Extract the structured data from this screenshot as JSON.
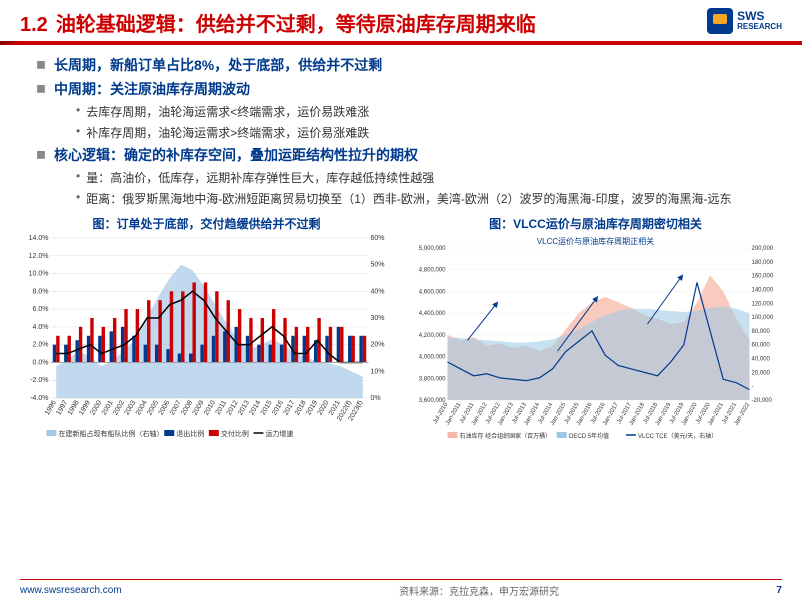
{
  "header": {
    "section_num": "1.2",
    "title": "油轮基础逻辑：供给并不过剩，等待原油库存周期来临",
    "logo_main": "SWS",
    "logo_sub": "RESEARCH"
  },
  "bullets": {
    "b1": "长周期，新船订单占比8%，处于底部，供给并不过剩",
    "b2": "中周期：关注原油库存周期波动",
    "b2a": "去库存周期，油轮海运需求<终端需求，运价易跌难涨",
    "b2b": "补库存周期，油轮海运需求>终端需求，运价易涨难跌",
    "b3": "核心逻辑：确定的补库存空间，叠加运距结构性拉升的期权",
    "b3a": "量：高油价，低库存，远期补库存弹性巨大，库存越低持续性越强",
    "b3b": "距离：俄罗斯黑海地中海-欧洲短距离贸易切换至（1）西非-欧洲，美湾-欧洲（2）波罗的海黑海-印度，波罗的海黑海-远东"
  },
  "chart1": {
    "title": "图：订单处于底部，交付趋缓供给并不过剩",
    "type": "combo_bar_line",
    "x_labels": [
      "1996",
      "1997",
      "1998",
      "1999",
      "2000",
      "2001",
      "2002",
      "2003",
      "2004",
      "2005",
      "2006",
      "2007",
      "2008",
      "2009",
      "2010",
      "2011",
      "2012",
      "2013",
      "2014",
      "2015",
      "2016",
      "2017",
      "2018",
      "2019",
      "2020",
      "2021",
      "2022(f)",
      "2023(f)"
    ],
    "y1_ticks": [
      "14.0%",
      "12.0%",
      "10.0%",
      "8.0%",
      "6.0%",
      "4.0%",
      "2.0%",
      "0.0%",
      "-2.0%",
      "-4.0%"
    ],
    "y1_min": -4,
    "y1_max": 14,
    "y2_ticks": [
      "60%",
      "50%",
      "40%",
      "30%",
      "20%",
      "10%",
      "0%"
    ],
    "y2_min": 0,
    "y2_max": 60,
    "series": {
      "orderbook_ratio": {
        "label": "在建新船占现有船队比例（右轴）",
        "color": "#a6c8e8",
        "values": [
          12,
          14,
          18,
          15,
          12,
          14,
          18,
          22,
          30,
          38,
          45,
          50,
          48,
          42,
          35,
          28,
          22,
          18,
          20,
          22,
          20,
          17,
          15,
          14,
          13,
          12,
          10,
          8
        ]
      },
      "exit_ratio": {
        "label": "退出比例",
        "color": "#003a8c",
        "values": [
          2,
          2,
          2.5,
          3,
          3,
          3.5,
          4,
          3,
          2,
          2,
          1.5,
          1,
          1,
          2,
          3,
          3.5,
          4,
          3,
          2,
          2,
          2,
          3,
          3,
          2.5,
          3,
          4,
          3,
          3
        ]
      },
      "delivery_ratio": {
        "label": "交付比例",
        "color": "#c00",
        "values": [
          3,
          3,
          4,
          5,
          4,
          5,
          6,
          6,
          7,
          7,
          8,
          8,
          9,
          9,
          8,
          7,
          6,
          5,
          5,
          6,
          5,
          4,
          4,
          5,
          4,
          4,
          3,
          3
        ]
      },
      "capacity_growth": {
        "label": "运力增速",
        "color": "#000",
        "values": [
          1,
          1,
          1.5,
          2,
          1,
          1.5,
          2,
          3,
          5,
          5,
          6.5,
          7,
          8,
          7,
          5,
          3.5,
          2,
          2,
          3,
          4,
          3,
          1,
          1,
          2.5,
          1,
          0,
          0,
          0
        ]
      }
    },
    "tick_fontsize": 7,
    "legend_fontsize": 7,
    "bg": "#ffffff"
  },
  "chart2": {
    "title": "图：VLCC运价与原油库存周期密切相关",
    "subtitle": "VLCC运价与原油库存周期正相关",
    "type": "area_line_dual",
    "x_labels": [
      "Jul-2010",
      "Jan-2011",
      "Jul-2011",
      "Jan-2012",
      "Jul-2012",
      "Jan-2013",
      "Jul-2013",
      "Jan-2014",
      "Jul-2014",
      "Jan-2015",
      "Jul-2015",
      "Jan-2016",
      "Jul-2016",
      "Jan-2017",
      "Jul-2017",
      "Jan-2018",
      "Jul-2018",
      "Jan-2019",
      "Jul-2019",
      "Jan-2020",
      "Jul-2020",
      "Jan-2021",
      "Jul-2021",
      "Jan-2022"
    ],
    "y1_ticks": [
      "5,000,000",
      "4,800,000",
      "4,600,000",
      "4,400,000",
      "4,200,000",
      "4,000,000",
      "3,800,000",
      "3,600,000"
    ],
    "y1_min": 3600000,
    "y1_max": 5000000,
    "y2_ticks": [
      "200,000",
      "180,000",
      "160,000",
      "140,000",
      "120,000",
      "100,000",
      "80,000",
      "60,000",
      "40,000",
      "20,000",
      "-",
      "-20,000"
    ],
    "y2_min": -20000,
    "y2_max": 200000,
    "series": {
      "inventory": {
        "label": "石油库存 经合组织国家（百万桶）",
        "color": "#f5b9a8",
        "values": [
          4200000,
          4150000,
          4180000,
          4100000,
          4120000,
          4080000,
          4100000,
          4050000,
          4100000,
          4250000,
          4400000,
          4500000,
          4550000,
          4500000,
          4450000,
          4380000,
          4350000,
          4300000,
          4320000,
          4500000,
          4750000,
          4600000,
          4350000,
          4150000
        ]
      },
      "oecd5y": {
        "label": "OECD 5年均值",
        "color": "#9ac9e3",
        "values": [
          4180000,
          4170000,
          4160000,
          4150000,
          4140000,
          4130000,
          4130000,
          4140000,
          4160000,
          4200000,
          4250000,
          4320000,
          4380000,
          4420000,
          4440000,
          4440000,
          4430000,
          4420000,
          4410000,
          4420000,
          4450000,
          4460000,
          4440000,
          4400000
        ]
      },
      "vlcc_tce": {
        "label": "VLCC TCE（美元/天，右轴）",
        "color": "#003a8c",
        "values": [
          35000,
          25000,
          15000,
          18000,
          12000,
          10000,
          8000,
          12000,
          25000,
          50000,
          65000,
          80000,
          45000,
          30000,
          25000,
          20000,
          15000,
          35000,
          60000,
          150000,
          80000,
          10000,
          5000,
          -5000
        ]
      }
    },
    "tick_fontsize": 6,
    "legend_fontsize": 6,
    "bg": "#ffffff"
  },
  "footer": {
    "url": "www.swsresearch.com",
    "source": "资料来源：克拉克森，申万宏源研究",
    "page": "7"
  }
}
